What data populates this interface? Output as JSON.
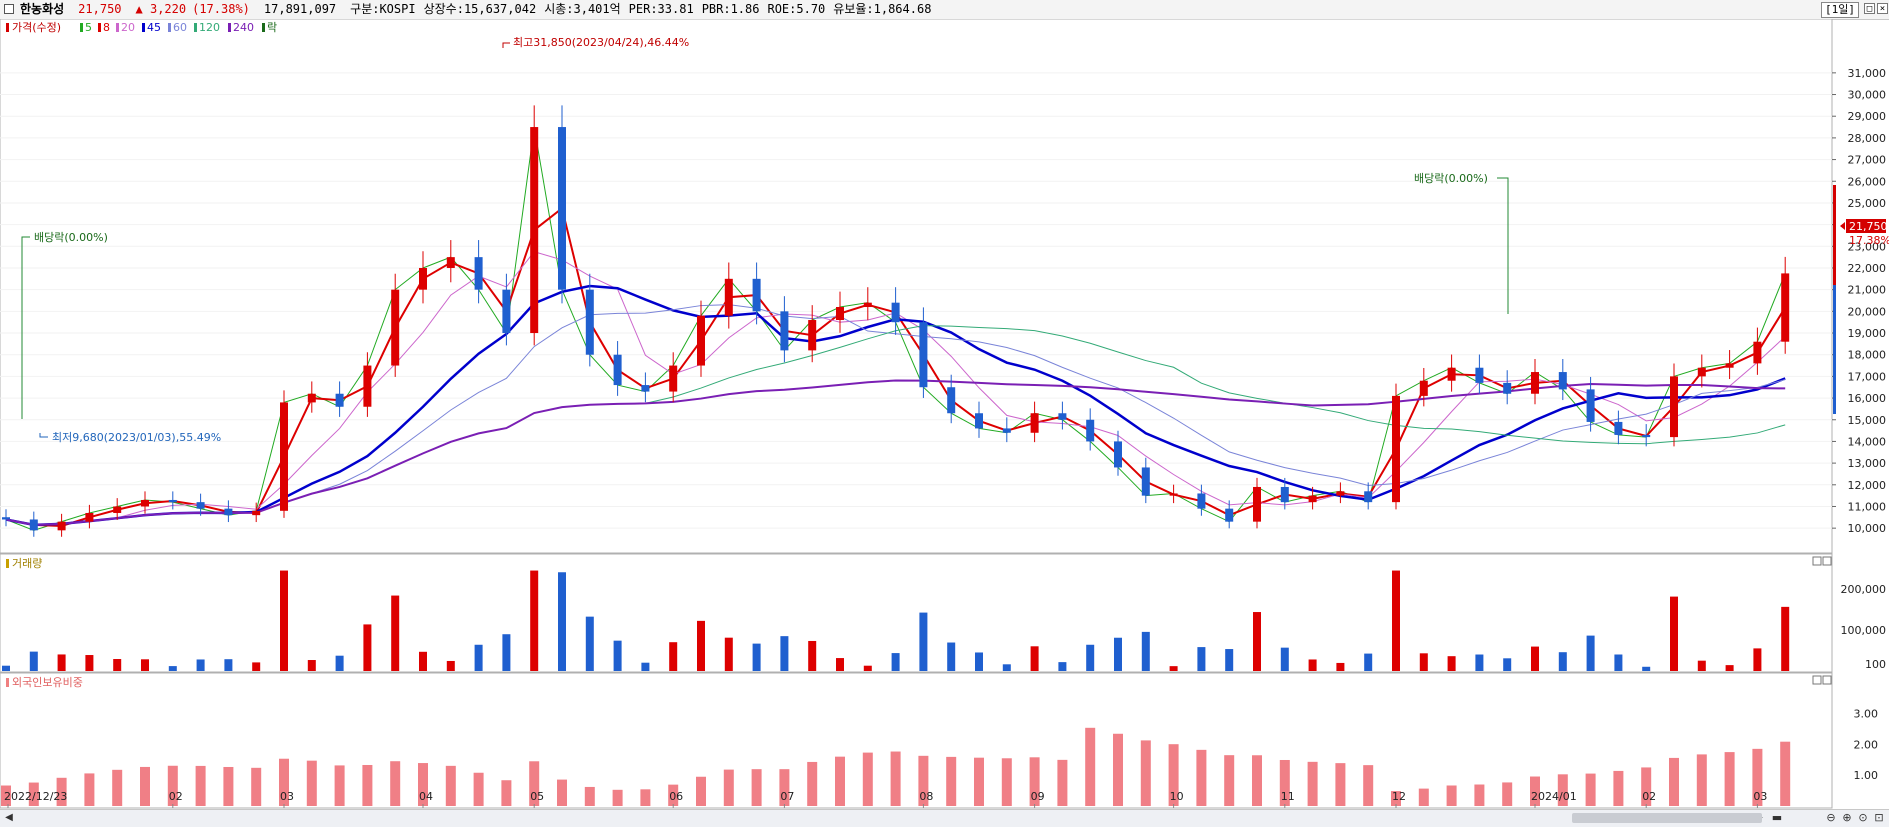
{
  "header": {
    "stock_name": "한농화성",
    "price": "21,750",
    "change": "▲ 3,220",
    "change_pct": "(17.38%)",
    "volume": "17,891,097",
    "market": "구분:KOSPI",
    "shares": "상장수:15,637,042",
    "market_cap": "시총:3,401억",
    "per": "PER:33.81",
    "pbr": "PBR:1.86",
    "roe": "ROE:5.70",
    "float": "유보율:1,864.68",
    "period": "[1일]"
  },
  "legend": {
    "price_label": "가격(수정)",
    "ma": [
      {
        "label": "5",
        "color": "#22aa22"
      },
      {
        "label": "8",
        "color": "#dd0000"
      },
      {
        "label": "20",
        "color": "#cc66cc"
      },
      {
        "label": "45",
        "color": "#0000cc"
      },
      {
        "label": "60",
        "color": "#7a84d8"
      },
      {
        "label": "120",
        "color": "#33aa77"
      },
      {
        "label": "240",
        "color": "#7a1fb4"
      }
    ],
    "ex_label": "락"
  },
  "annotations": {
    "high": "최고31,850(2023/04/24),46.44%",
    "low": "최저9,680(2023/01/03),55.49%",
    "div1": "배당락(0.00%)",
    "div2": "배당락(0.00%)",
    "cur_price": "21,750",
    "cur_pct": "17.38%"
  },
  "volume_panel": {
    "title": "거래량"
  },
  "foreign_panel": {
    "title": "외국인보유비중"
  },
  "chart_data": [
    {
      "type": "candlestick",
      "series_name": "가격(수정)",
      "y_ticks": [
        10000,
        11000,
        12000,
        13000,
        14000,
        15000,
        16000,
        17000,
        18000,
        19000,
        20000,
        21000,
        22000,
        23000,
        24000,
        25000,
        26000,
        27000,
        28000,
        29000,
        30000,
        31000
      ],
      "y_tick_labels": [
        "10,000",
        "11,000",
        "12,000",
        "13,000",
        "14,000",
        "15,000",
        "16,000",
        "17,000",
        "18,000",
        "19,000",
        "20,000",
        "21,000",
        "22,000",
        "23,000",
        "24,000",
        "25,000",
        "26,000",
        "27,000",
        "28,000",
        "29,000",
        "30,000",
        "31,000"
      ],
      "x_labels": [
        {
          "label": "2022/12/23",
          "week": 0
        },
        {
          "label": "02",
          "week": 6
        },
        {
          "label": "03",
          "week": 10
        },
        {
          "label": "04",
          "week": 15
        },
        {
          "label": "05",
          "week": 19
        },
        {
          "label": "06",
          "week": 24
        },
        {
          "label": "07",
          "week": 28
        },
        {
          "label": "08",
          "week": 33
        },
        {
          "label": "09",
          "week": 37
        },
        {
          "label": "10",
          "week": 42
        },
        {
          "label": "11",
          "week": 46
        },
        {
          "label": "12",
          "week": 50
        },
        {
          "label": "2024/01",
          "week": 55
        },
        {
          "label": "02",
          "week": 59
        },
        {
          "label": "03",
          "week": 63
        }
      ],
      "weekly_close": [
        10400,
        9900,
        10300,
        10700,
        11000,
        11300,
        11200,
        10900,
        10600,
        10800,
        15800,
        16200,
        15600,
        17500,
        21000,
        22000,
        22500,
        21000,
        19000,
        28500,
        21000,
        18000,
        16600,
        16300,
        17500,
        19800,
        21500,
        20000,
        18200,
        19600,
        20200,
        20400,
        19500,
        16500,
        15300,
        14600,
        14400,
        15300,
        15000,
        14000,
        12800,
        11500,
        11600,
        10900,
        10300,
        11900,
        11200,
        11500,
        11700,
        11200,
        16100,
        16800,
        17400,
        16700,
        16200,
        17200,
        16400,
        14900,
        14300,
        14200,
        17000,
        17400,
        17600,
        18600,
        21750
      ],
      "volume_axis": {
        "ticks": [
          100,
          100000,
          200000
        ],
        "labels": [
          "100",
          "100,000",
          "200,000"
        ]
      },
      "foreign_axis": {
        "ticks": [
          1.0,
          2.0,
          3.0
        ],
        "labels": [
          "1.00",
          "2.00",
          "3.00"
        ]
      }
    }
  ]
}
